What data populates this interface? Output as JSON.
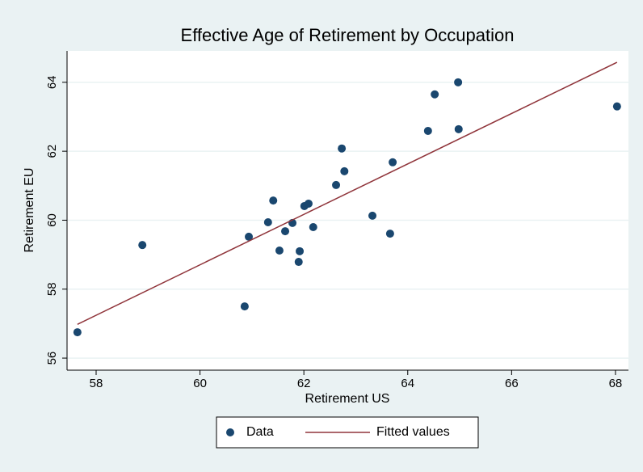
{
  "chart_data": {
    "type": "scatter",
    "title": "Effective Age of Retirement by Occupation",
    "x_label": "Retirement US",
    "y_label": "Retirement EU",
    "xlim": [
      57.44,
      68.25
    ],
    "ylim": [
      55.65,
      64.91
    ],
    "xticks": [
      58,
      60,
      62,
      64,
      66,
      68
    ],
    "yticks": [
      56,
      58,
      60,
      62,
      64
    ],
    "grid": true,
    "legend": "bottom",
    "series": [
      {
        "name": "Data",
        "color": "#1a476f",
        "type": "scatter",
        "x": [
          57.64,
          58.89,
          60.86,
          60.94,
          61.31,
          61.41,
          61.53,
          61.64,
          61.78,
          61.9,
          61.92,
          62.01,
          62.18,
          62.09,
          62.62,
          62.73,
          62.78,
          63.32,
          63.66,
          63.71,
          64.39,
          64.52,
          64.97,
          64.98,
          68.03
        ],
        "values": [
          56.75,
          59.28,
          57.5,
          59.52,
          59.94,
          60.57,
          59.12,
          59.68,
          59.92,
          58.79,
          59.1,
          60.41,
          59.8,
          60.48,
          61.02,
          62.08,
          61.42,
          60.13,
          59.61,
          61.68,
          62.59,
          63.65,
          64.0,
          62.64,
          63.3
        ]
      },
      {
        "name": "Fitted values",
        "color": "#90353b",
        "type": "line",
        "x": [
          57.64,
          68.03
        ],
        "values": [
          56.98,
          64.58
        ]
      }
    ]
  }
}
